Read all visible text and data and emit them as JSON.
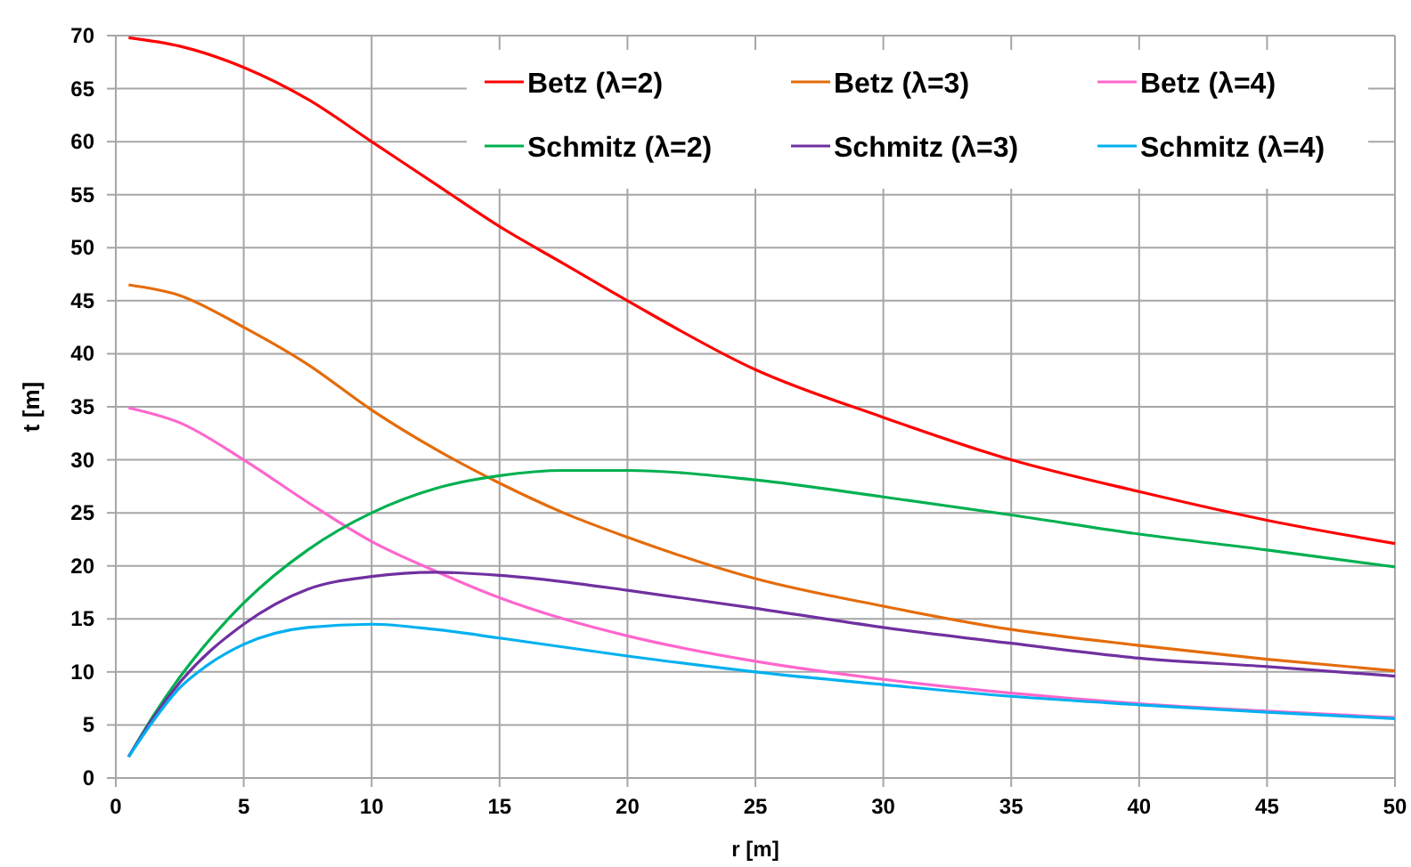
{
  "chart_data": {
    "type": "line",
    "xlabel": "r [m]",
    "ylabel": "t [m]",
    "xlim": [
      0,
      50
    ],
    "xticks": [
      0,
      5,
      10,
      15,
      20,
      25,
      30,
      35,
      40,
      45,
      50
    ],
    "ylim": [
      0,
      70
    ],
    "yticks": [
      0,
      5,
      10,
      15,
      20,
      25,
      30,
      35,
      40,
      45,
      50,
      55,
      60,
      65,
      70
    ],
    "grid": true,
    "legend": "top right",
    "marker": "none",
    "line_style": "solid",
    "series": [
      {
        "name": "Betz (λ=2)",
        "color": "#ff0000",
        "x": [
          0.5,
          2.5,
          5,
          7.5,
          10,
          12.5,
          15,
          17.5,
          20,
          25,
          30,
          35,
          40,
          45,
          50
        ],
        "values": [
          69.8,
          69,
          67,
          64,
          60,
          56,
          52,
          48.5,
          45,
          38.5,
          34,
          30,
          27,
          24.3,
          22.1
        ]
      },
      {
        "name": "Betz (λ=3)",
        "color": "#e46c0a",
        "x": [
          0.5,
          2.5,
          5,
          7.5,
          10,
          12.5,
          15,
          17.5,
          20,
          25,
          30,
          35,
          40,
          45,
          50
        ],
        "values": [
          46.5,
          45.5,
          42.5,
          39,
          34.7,
          31,
          27.8,
          25,
          22.7,
          18.8,
          16.2,
          14,
          12.5,
          11.2,
          10.1
        ]
      },
      {
        "name": "Betz (λ=4)",
        "color": "#ff66cc",
        "x": [
          0.5,
          2.5,
          5,
          7.5,
          10,
          12.5,
          15,
          17.5,
          20,
          25,
          30,
          35,
          40,
          45,
          50
        ],
        "values": [
          34.9,
          33.5,
          30,
          26,
          22.3,
          19.5,
          17,
          15,
          13.4,
          11,
          9.3,
          8,
          7,
          6.3,
          5.7
        ]
      },
      {
        "name": "Schmitz (λ=2)",
        "color": "#00b050",
        "x": [
          0.5,
          1.5,
          2.5,
          5,
          7.5,
          10,
          12.5,
          15,
          17.5,
          20,
          25,
          30,
          35,
          40,
          45,
          50
        ],
        "values": [
          2,
          6,
          9.5,
          16.5,
          21.5,
          25,
          27.3,
          28.5,
          29,
          29,
          28.1,
          26.5,
          24.8,
          23,
          21.5,
          19.9
        ]
      },
      {
        "name": "Schmitz (λ=3)",
        "color": "#7030a0",
        "x": [
          0.5,
          1.5,
          2.5,
          5,
          7.5,
          10,
          12.5,
          15,
          17.5,
          20,
          25,
          30,
          35,
          40,
          45,
          50
        ],
        "values": [
          2,
          5.8,
          9,
          14.5,
          17.8,
          19,
          19.4,
          19.1,
          18.5,
          17.7,
          16,
          14.2,
          12.7,
          11.3,
          10.5,
          9.6
        ]
      },
      {
        "name": "Schmitz (λ=4)",
        "color": "#00b0f0",
        "x": [
          0.5,
          1.5,
          2.5,
          3.5,
          5,
          7.5,
          10,
          12.5,
          15,
          20,
          25,
          30,
          35,
          40,
          45,
          50
        ],
        "values": [
          2,
          5.5,
          8.5,
          10.5,
          12.6,
          14.2,
          14.5,
          14,
          13.2,
          11.5,
          10,
          8.8,
          7.7,
          6.9,
          6.2,
          5.6
        ]
      }
    ]
  }
}
